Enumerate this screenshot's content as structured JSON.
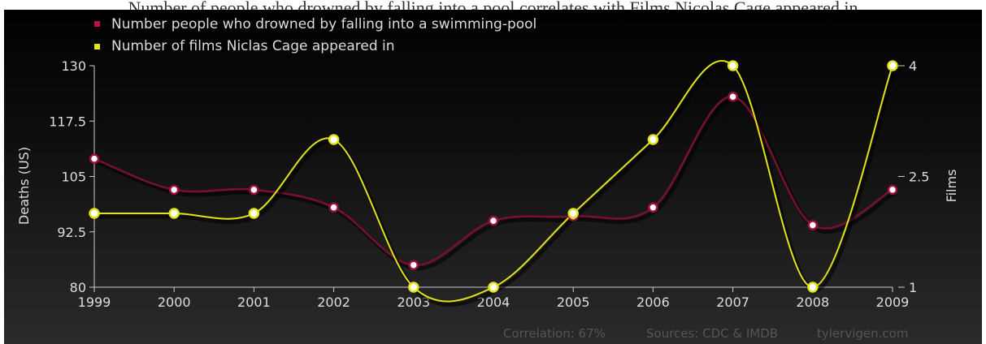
{
  "page": {
    "title": "Number of people who drowned by falling into a pool correlates with Films Nicolas Cage appeared in"
  },
  "chart_data": {
    "type": "line",
    "x": [
      1999,
      2000,
      2001,
      2002,
      2003,
      2004,
      2005,
      2006,
      2007,
      2008,
      2009
    ],
    "series": [
      {
        "name": "Number people who drowned by falling into a swimming-pool",
        "axis": "left",
        "color": "#7a1030",
        "values": [
          109,
          102,
          102,
          98,
          85,
          95,
          96,
          98,
          123,
          94,
          102
        ]
      },
      {
        "name": "Number of films Niclas Cage appeared in",
        "axis": "right",
        "color": "#e3e31a",
        "values": [
          2,
          2,
          2,
          3,
          1,
          1,
          2,
          3,
          4,
          1,
          4
        ]
      }
    ],
    "ylabel_left": "Deaths (US)",
    "ylabel_right": "Films",
    "ylim_left": [
      80,
      130
    ],
    "ylim_right": [
      1,
      4
    ],
    "yticks_left": [
      "80",
      "92.5",
      "105",
      "117.5",
      "130"
    ],
    "yticks_right": [
      "1",
      "2.5",
      "4"
    ],
    "xticks": [
      "1999",
      "2000",
      "2001",
      "2002",
      "2003",
      "2004",
      "2005",
      "2006",
      "2007",
      "2008",
      "2009"
    ],
    "legend_position": "top-left",
    "grid": false
  },
  "footer": {
    "correlation": "Correlation: 67%",
    "sources": "Sources: CDC & IMDB",
    "site": "tylervigen.com"
  }
}
